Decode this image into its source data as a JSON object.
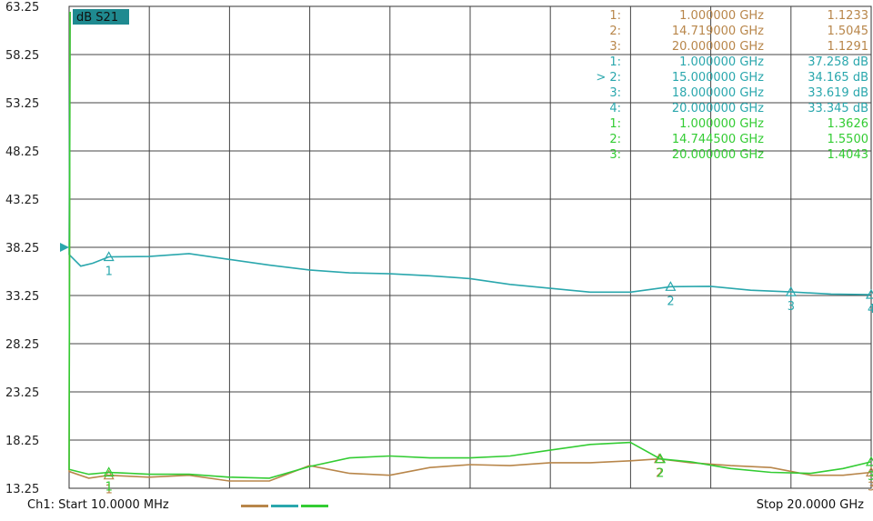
{
  "chart_data": {
    "type": "line",
    "title_badge": "dB S21",
    "y_ticks": [
      "63.25",
      "58.25",
      "53.25",
      "48.25",
      "43.25",
      "38.25",
      "33.25",
      "28.25",
      "23.25",
      "18.25",
      "13.25"
    ],
    "ylim": [
      13.25,
      63.25
    ],
    "xlim_ghz": [
      0.01,
      20.0
    ],
    "reference_marker": {
      "y": 38.25
    },
    "series": [
      {
        "color": "#2aa7ad",
        "points": [
          [
            0.01,
            37.5
          ],
          [
            0.3,
            36.3
          ],
          [
            0.6,
            36.6
          ],
          [
            1.0,
            37.258
          ],
          [
            2.0,
            37.3
          ],
          [
            3.0,
            37.6
          ],
          [
            4.0,
            37.0
          ],
          [
            5.0,
            36.4
          ],
          [
            6.0,
            35.9
          ],
          [
            7.0,
            35.6
          ],
          [
            8.0,
            35.5
          ],
          [
            9.0,
            35.3
          ],
          [
            10.0,
            35.0
          ],
          [
            11.0,
            34.4
          ],
          [
            12.0,
            34.0
          ],
          [
            13.0,
            33.6
          ],
          [
            14.0,
            33.6
          ],
          [
            15.0,
            34.165
          ],
          [
            16.0,
            34.2
          ],
          [
            17.0,
            33.8
          ],
          [
            18.0,
            33.619
          ],
          [
            19.0,
            33.4
          ],
          [
            20.0,
            33.345
          ]
        ],
        "markers": [
          {
            "id": "1",
            "x": 1.0,
            "y": 37.258
          },
          {
            "id": "2",
            "x": 15.0,
            "y": 34.165
          },
          {
            "id": "3",
            "x": 18.0,
            "y": 33.619
          },
          {
            "id": "4",
            "x": 20.0,
            "y": 33.345
          }
        ]
      },
      {
        "color": "#b8864a",
        "points": [
          [
            0.01,
            15.0
          ],
          [
            0.5,
            14.3
          ],
          [
            1.0,
            14.6
          ],
          [
            2.0,
            14.4
          ],
          [
            3.0,
            14.6
          ],
          [
            4.0,
            14.0
          ],
          [
            5.0,
            14.0
          ],
          [
            6.0,
            15.6
          ],
          [
            7.0,
            14.8
          ],
          [
            8.0,
            14.6
          ],
          [
            9.0,
            15.4
          ],
          [
            10.0,
            15.7
          ],
          [
            11.0,
            15.6
          ],
          [
            12.0,
            15.9
          ],
          [
            13.0,
            15.9
          ],
          [
            14.0,
            16.1
          ],
          [
            14.719,
            16.3
          ],
          [
            15.5,
            15.9
          ],
          [
            16.5,
            15.6
          ],
          [
            17.5,
            15.4
          ],
          [
            18.5,
            14.6
          ],
          [
            19.3,
            14.6
          ],
          [
            20.0,
            14.9
          ]
        ],
        "markers": [
          {
            "id": "1",
            "x": 1.0,
            "y": 14.6
          },
          {
            "id": "2",
            "x": 14.719,
            "y": 16.3
          },
          {
            "id": "3",
            "x": 20.0,
            "y": 14.9
          }
        ]
      },
      {
        "color": "#33cc33",
        "points": [
          [
            0.01,
            15.2
          ],
          [
            0.5,
            14.7
          ],
          [
            1.0,
            14.9
          ],
          [
            2.0,
            14.7
          ],
          [
            3.0,
            14.7
          ],
          [
            4.0,
            14.4
          ],
          [
            5.0,
            14.3
          ],
          [
            6.0,
            15.5
          ],
          [
            7.0,
            16.4
          ],
          [
            8.0,
            16.6
          ],
          [
            9.0,
            16.4
          ],
          [
            10.0,
            16.4
          ],
          [
            11.0,
            16.6
          ],
          [
            12.0,
            17.2
          ],
          [
            13.0,
            17.8
          ],
          [
            14.0,
            18.0
          ],
          [
            14.7445,
            16.3
          ],
          [
            15.5,
            16.0
          ],
          [
            16.5,
            15.3
          ],
          [
            17.5,
            14.9
          ],
          [
            18.5,
            14.8
          ],
          [
            19.3,
            15.3
          ],
          [
            20.0,
            16.0
          ]
        ],
        "markers": [
          {
            "id": "1",
            "x": 1.0,
            "y": 14.9
          },
          {
            "id": "2",
            "x": 14.7445,
            "y": 16.3
          },
          {
            "id": "3",
            "x": 20.0,
            "y": 16.0
          }
        ]
      }
    ],
    "marker_table": [
      {
        "color": "#b8864a",
        "index": "1:",
        "freq": "1.000000 GHz",
        "value": "1.1233"
      },
      {
        "color": "#b8864a",
        "index": "2:",
        "freq": "14.719000 GHz",
        "value": "1.5045"
      },
      {
        "color": "#b8864a",
        "index": "3:",
        "freq": "20.000000 GHz",
        "value": "1.1291"
      },
      {
        "color": "#2aa7ad",
        "index": "1:",
        "freq": "1.000000 GHz",
        "value": "37.258 dB"
      },
      {
        "color": "#2aa7ad",
        "index": "> 2:",
        "freq": "15.000000 GHz",
        "value": "34.165 dB"
      },
      {
        "color": "#2aa7ad",
        "index": "3:",
        "freq": "18.000000 GHz",
        "value": "33.619 dB"
      },
      {
        "color": "#2aa7ad",
        "index": "4:",
        "freq": "20.000000 GHz",
        "value": "33.345 dB"
      },
      {
        "color": "#33cc33",
        "index": "1:",
        "freq": "1.000000 GHz",
        "value": "1.3626"
      },
      {
        "color": "#33cc33",
        "index": "2:",
        "freq": "14.744500 GHz",
        "value": "1.5500"
      },
      {
        "color": "#33cc33",
        "index": "3:",
        "freq": "20.000000 GHz",
        "value": "1.4043"
      }
    ],
    "start_label": "Ch1: Start  10.0000 MHz",
    "stop_label": "Stop  20.0000 GHz",
    "legend_colors": [
      "#b8864a",
      "#2aa7ad",
      "#33cc33"
    ]
  }
}
